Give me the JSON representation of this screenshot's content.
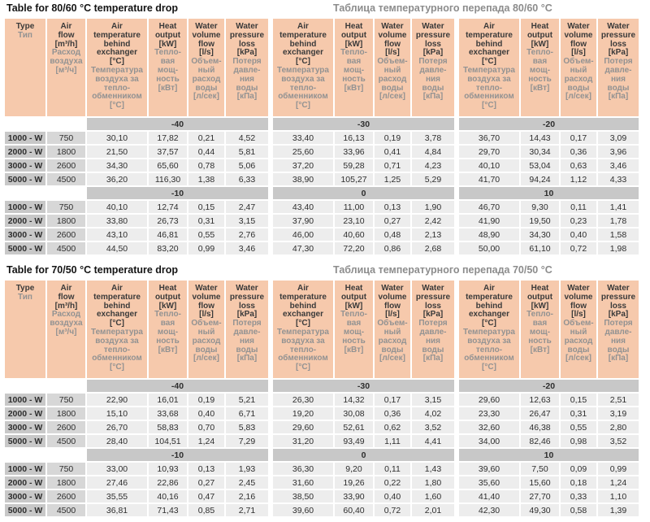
{
  "colors": {
    "header_bg": "#f6c9ac",
    "band_bg": "#c8c8c8",
    "type_cell_bg": "#c8c8c8",
    "airflow_cell_bg": "#d7d7d7",
    "value_cell_bg": "#ededed",
    "russian_text": "#929292"
  },
  "columns": {
    "type": {
      "key": "type",
      "en": "Type",
      "ru": "Тип"
    },
    "airflow": {
      "key": "air-flow",
      "en": "Air\nflow\n[m³/h]",
      "ru": "Расход\nвоздуха\n[м³/ч]"
    },
    "group": [
      {
        "key": "air-temperature-behind-exchanger",
        "en": "Air\ntemperature\nbehind\nexchanger\n[°C]",
        "ru": "Температура\nвоздуха за\nтепло-\nобменником\n[°C]"
      },
      {
        "key": "heat-output",
        "en": "Heat\noutput\n[kW]",
        "ru": "Тепло-\nвая\nмощ-\nность\n[кВт]"
      },
      {
        "key": "water-volume-flow",
        "en": "Water\nvolume\nflow\n[l/s]",
        "ru": "Объем-\nный\nрасход\nводы\n[л/сек]"
      },
      {
        "key": "water-pressure-loss",
        "en": "Water\npressure\nloss\n[kPa]",
        "ru": "Потеря\nдавле-\nния\nводы\n[кПа]"
      }
    ]
  },
  "tables": [
    {
      "title_en": "Table for 80/60 °C temperature drop",
      "title_ru": "Таблица температурного перепада 80/60 °C",
      "sections": [
        {
          "bands": [
            "-40",
            "-30",
            "-20"
          ],
          "rows": [
            {
              "type": "1000 - W",
              "airflow": "750",
              "groups": [
                [
                  "30,10",
                  "17,82",
                  "0,21",
                  "4,52"
                ],
                [
                  "33,40",
                  "16,13",
                  "0,19",
                  "3,78"
                ],
                [
                  "36,70",
                  "14,43",
                  "0,17",
                  "3,09"
                ]
              ]
            },
            {
              "type": "2000 - W",
              "airflow": "1800",
              "groups": [
                [
                  "21,50",
                  "37,57",
                  "0,44",
                  "5,81"
                ],
                [
                  "25,60",
                  "33,96",
                  "0,41",
                  "4,84"
                ],
                [
                  "29,70",
                  "30,34",
                  "0,36",
                  "3,96"
                ]
              ]
            },
            {
              "type": "3000 - W",
              "airflow": "2600",
              "groups": [
                [
                  "34,30",
                  "65,60",
                  "0,78",
                  "5,06"
                ],
                [
                  "37,20",
                  "59,28",
                  "0,71",
                  "4,23"
                ],
                [
                  "40,10",
                  "53,04",
                  "0,63",
                  "3,46"
                ]
              ]
            },
            {
              "type": "5000 - W",
              "airflow": "4500",
              "groups": [
                [
                  "36,20",
                  "116,30",
                  "1,38",
                  "6,33"
                ],
                [
                  "38,90",
                  "105,27",
                  "1,25",
                  "5,29"
                ],
                [
                  "41,70",
                  "94,24",
                  "1,12",
                  "4,33"
                ]
              ]
            }
          ]
        },
        {
          "bands": [
            "-10",
            "0",
            "10"
          ],
          "rows": [
            {
              "type": "1000 - W",
              "airflow": "750",
              "groups": [
                [
                  "40,10",
                  "12,74",
                  "0,15",
                  "2,47"
                ],
                [
                  "43,40",
                  "11,00",
                  "0,13",
                  "1,90"
                ],
                [
                  "46,70",
                  "9,30",
                  "0,11",
                  "1,41"
                ]
              ]
            },
            {
              "type": "2000 - W",
              "airflow": "1800",
              "groups": [
                [
                  "33,80",
                  "26,73",
                  "0,31",
                  "3,15"
                ],
                [
                  "37,90",
                  "23,10",
                  "0,27",
                  "2,42"
                ],
                [
                  "41,90",
                  "19,50",
                  "0,23",
                  "1,78"
                ]
              ]
            },
            {
              "type": "3000 - W",
              "airflow": "2600",
              "groups": [
                [
                  "43,10",
                  "46,81",
                  "0,55",
                  "2,76"
                ],
                [
                  "46,00",
                  "40,60",
                  "0,48",
                  "2,13"
                ],
                [
                  "48,90",
                  "34,30",
                  "0,40",
                  "1,58"
                ]
              ]
            },
            {
              "type": "5000 - W",
              "airflow": "4500",
              "groups": [
                [
                  "44,50",
                  "83,20",
                  "0,99",
                  "3,46"
                ],
                [
                  "47,30",
                  "72,20",
                  "0,86",
                  "2,68"
                ],
                [
                  "50,00",
                  "61,10",
                  "0,72",
                  "1,98"
                ]
              ]
            }
          ]
        }
      ]
    },
    {
      "title_en": "Table for 70/50 °C temperature drop",
      "title_ru": "Таблица температурного перепада 70/50 °C",
      "sections": [
        {
          "bands": [
            "-40",
            "-30",
            "-20"
          ],
          "rows": [
            {
              "type": "1000 - W",
              "airflow": "750",
              "groups": [
                [
                  "22,90",
                  "16,01",
                  "0,19",
                  "5,21"
                ],
                [
                  "26,30",
                  "14,32",
                  "0,17",
                  "3,15"
                ],
                [
                  "29,60",
                  "12,63",
                  "0,15",
                  "2,51"
                ]
              ]
            },
            {
              "type": "2000 - W",
              "airflow": "1800",
              "groups": [
                [
                  "15,10",
                  "33,68",
                  "0,40",
                  "6,71"
                ],
                [
                  "19,20",
                  "30,08",
                  "0,36",
                  "4,02"
                ],
                [
                  "23,30",
                  "26,47",
                  "0,31",
                  "3,19"
                ]
              ]
            },
            {
              "type": "3000 - W",
              "airflow": "2600",
              "groups": [
                [
                  "26,70",
                  "58,83",
                  "0,70",
                  "5,83"
                ],
                [
                  "29,60",
                  "52,61",
                  "0,62",
                  "3,52"
                ],
                [
                  "32,60",
                  "46,38",
                  "0,55",
                  "2,80"
                ]
              ]
            },
            {
              "type": "5000 - W",
              "airflow": "4500",
              "groups": [
                [
                  "28,40",
                  "104,51",
                  "1,24",
                  "7,29"
                ],
                [
                  "31,20",
                  "93,49",
                  "1,11",
                  "4,41"
                ],
                [
                  "34,00",
                  "82,46",
                  "0,98",
                  "3,52"
                ]
              ]
            }
          ]
        },
        {
          "bands": [
            "-10",
            "0",
            "10"
          ],
          "rows": [
            {
              "type": "1000 - W",
              "airflow": "750",
              "groups": [
                [
                  "33,00",
                  "10,93",
                  "0,13",
                  "1,93"
                ],
                [
                  "36,30",
                  "9,20",
                  "0,11",
                  "1,43"
                ],
                [
                  "39,60",
                  "7,50",
                  "0,09",
                  "0,99"
                ]
              ]
            },
            {
              "type": "2000 - W",
              "airflow": "1800",
              "groups": [
                [
                  "27,46",
                  "22,86",
                  "0,27",
                  "2,45"
                ],
                [
                  "31,60",
                  "19,26",
                  "0,22",
                  "1,80"
                ],
                [
                  "35,60",
                  "15,60",
                  "0,18",
                  "1,24"
                ]
              ]
            },
            {
              "type": "3000 - W",
              "airflow": "2600",
              "groups": [
                [
                  "35,55",
                  "40,16",
                  "0,47",
                  "2,16"
                ],
                [
                  "38,50",
                  "33,90",
                  "0,40",
                  "1,60"
                ],
                [
                  "41,40",
                  "27,70",
                  "0,33",
                  "1,10"
                ]
              ]
            },
            {
              "type": "5000 - W",
              "airflow": "4500",
              "groups": [
                [
                  "36,81",
                  "71,43",
                  "0,85",
                  "2,71"
                ],
                [
                  "39,60",
                  "60,40",
                  "0,72",
                  "2,01"
                ],
                [
                  "42,30",
                  "49,30",
                  "0,58",
                  "1,39"
                ]
              ]
            }
          ]
        }
      ]
    }
  ]
}
